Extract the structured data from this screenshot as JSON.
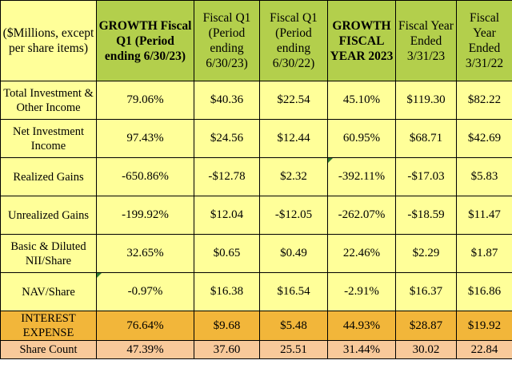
{
  "header": {
    "units": "($Millions, except per share items)",
    "columns": [
      "GROWTH Fiscal Q1 (Period ending 6/30/23)",
      "Fiscal Q1 (Period ending 6/30/23)",
      "Fiscal Q1 (Period ending 6/30/22)",
      "GROWTH FISCAL YEAR 2023",
      "Fiscal Year Ended 3/31/23",
      "Fiscal Year Ended 3/31/22"
    ]
  },
  "rows": [
    {
      "label": "Total Investment & Other Income",
      "values": [
        "79.06%",
        "$40.36",
        "$22.54",
        "45.10%",
        "$119.30",
        "$82.22"
      ]
    },
    {
      "label": "Net Investment Income",
      "values": [
        "97.43%",
        "$24.56",
        "$12.44",
        "60.95%",
        "$68.71",
        "$42.69"
      ]
    },
    {
      "label": "Realized Gains",
      "values": [
        "-650.86%",
        "-$12.78",
        "$2.32",
        "-392.11%",
        "-$17.03",
        "$5.83"
      ]
    },
    {
      "label": "Unrealized Gains",
      "values": [
        "-199.92%",
        "$12.04",
        "-$12.05",
        "-262.07%",
        "-$18.59",
        "$11.47"
      ]
    },
    {
      "label": "Basic & Diluted NII/Share",
      "values": [
        "32.65%",
        "$0.65",
        "$0.49",
        "22.46%",
        "$2.29",
        "$1.87"
      ]
    },
    {
      "label": "NAV/Share",
      "values": [
        "-0.97%",
        "$16.38",
        "$16.54",
        "-2.91%",
        "$16.37",
        "$16.86"
      ]
    },
    {
      "label": "INTEREST EXPENSE",
      "values": [
        "76.64%",
        "$9.68",
        "$5.48",
        "44.93%",
        "$28.87",
        "$19.92"
      ]
    },
    {
      "label": "Share Count",
      "values": [
        "47.39%",
        "37.60",
        "25.51",
        "31.44%",
        "30.02",
        "22.84"
      ]
    }
  ],
  "colors": {
    "header_green": "#b3cf4c",
    "body_yellow": "#ffff99",
    "interest_orange": "#f2b63a",
    "share_peach": "#f8c99a"
  }
}
